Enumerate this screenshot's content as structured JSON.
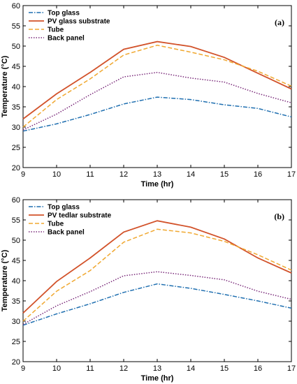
{
  "chart_data": [
    {
      "type": "line",
      "panel_label": "(a)",
      "xlabel": "Time (hr)",
      "ylabel": "Temperature (°C)",
      "x": [
        9,
        10,
        11,
        12,
        13,
        14,
        15,
        16,
        17
      ],
      "xlim": [
        9,
        17
      ],
      "ylim": [
        20,
        60
      ],
      "xticks": [
        9,
        10,
        11,
        12,
        13,
        14,
        15,
        16,
        17
      ],
      "yticks": [
        20,
        25,
        30,
        35,
        40,
        45,
        50,
        55,
        60
      ],
      "grid": false,
      "legend_position": "top-left",
      "series": [
        {
          "name": "Top glass",
          "color": "#1f6fb0",
          "style": "dashdot",
          "values": [
            29.0,
            30.8,
            33.1,
            35.7,
            37.4,
            36.8,
            35.5,
            34.6,
            32.5
          ]
        },
        {
          "name": "PV glass substrate",
          "color": "#d2522a",
          "style": "solid",
          "values": [
            32.0,
            38.2,
            43.5,
            49.2,
            51.1,
            49.9,
            47.2,
            43.3,
            39.4
          ]
        },
        {
          "name": "Tube",
          "color": "#f0a830",
          "style": "dashed",
          "values": [
            30.0,
            36.8,
            41.9,
            47.8,
            50.2,
            48.5,
            46.6,
            43.8,
            40.1
          ]
        },
        {
          "name": "Back panel",
          "color": "#7a2a7a",
          "style": "dotted",
          "values": [
            29.3,
            33.2,
            38.0,
            42.4,
            43.5,
            42.1,
            41.1,
            38.3,
            36.0
          ]
        }
      ]
    },
    {
      "type": "line",
      "panel_label": "(b)",
      "xlabel": "Time (hr)",
      "ylabel": "Temperature (°C)",
      "x": [
        9,
        10,
        11,
        12,
        13,
        14,
        15,
        16,
        17
      ],
      "xlim": [
        9,
        17
      ],
      "ylim": [
        20,
        60
      ],
      "xticks": [
        9,
        10,
        11,
        12,
        13,
        14,
        15,
        16,
        17
      ],
      "yticks": [
        20,
        25,
        30,
        35,
        40,
        45,
        50,
        55,
        60
      ],
      "grid": false,
      "legend_position": "top-left",
      "series": [
        {
          "name": "Top glass",
          "color": "#1f6fb0",
          "style": "dashdot",
          "values": [
            29.0,
            31.8,
            34.3,
            37.1,
            39.2,
            38.1,
            36.6,
            35.0,
            33.2
          ]
        },
        {
          "name": "PV tedlar substrate",
          "color": "#d2522a",
          "style": "solid",
          "values": [
            32.0,
            39.8,
            45.6,
            52.0,
            54.8,
            53.2,
            50.3,
            45.6,
            41.9
          ]
        },
        {
          "name": "Tube",
          "color": "#f0a830",
          "style": "dashed",
          "values": [
            30.0,
            37.4,
            42.5,
            49.5,
            52.7,
            51.8,
            49.7,
            46.4,
            42.6
          ]
        },
        {
          "name": "Back panel",
          "color": "#7a2a7a",
          "style": "dotted",
          "values": [
            29.2,
            33.8,
            37.3,
            41.2,
            42.2,
            41.3,
            40.2,
            37.4,
            35.4
          ]
        }
      ]
    }
  ]
}
